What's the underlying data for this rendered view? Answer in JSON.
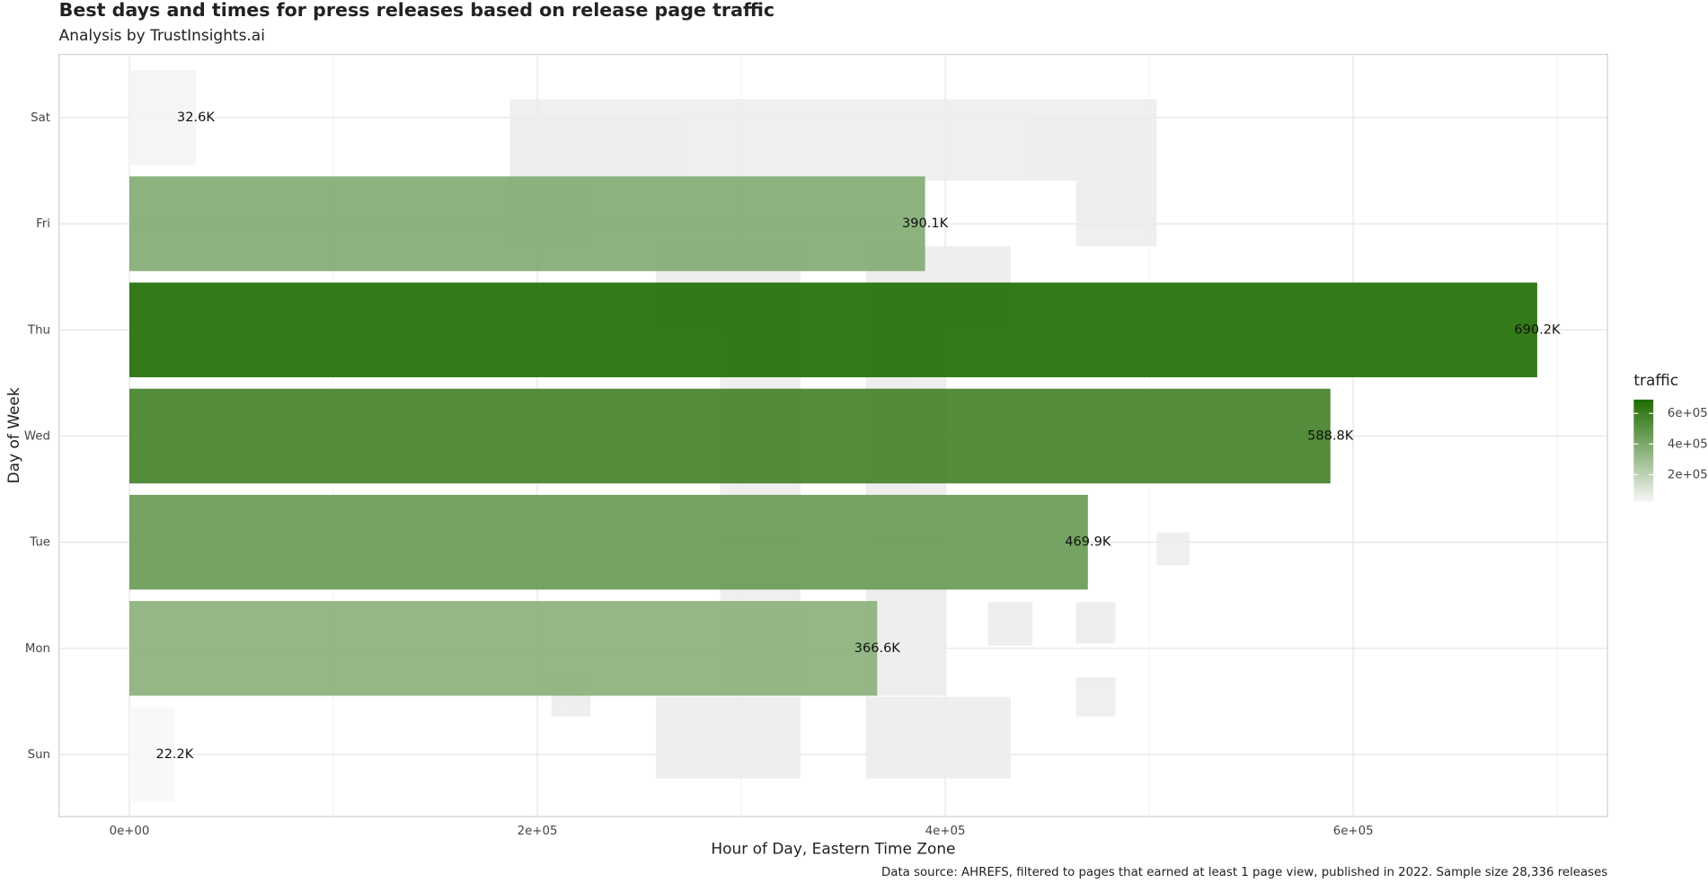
{
  "chart_data": {
    "type": "bar",
    "orientation": "horizontal",
    "title": "Best days and times for press releases based on release page traffic",
    "subtitle": "Analysis by TrustInsights.ai",
    "x_label": "Hour of Day, Eastern Time Zone",
    "y_label": "Day of Week",
    "caption": "Data source: AHREFS, filtered to pages that earned at least 1 page view, published in 2022. Sample size 28,336 releases",
    "categories": [
      "Sun",
      "Mon",
      "Tue",
      "Wed",
      "Thu",
      "Fri",
      "Sat"
    ],
    "values": [
      22200,
      366600,
      469900,
      588800,
      690200,
      390100,
      32600
    ],
    "value_labels": [
      "22.2K",
      "366.6K",
      "469.9K",
      "588.8K",
      "690.2K",
      "390.1K",
      "32.6K"
    ],
    "xlim": [
      -34500,
      724700
    ],
    "xticks": [
      {
        "value": 0,
        "label": "0e+00"
      },
      {
        "value": 200000,
        "label": "2e+05"
      },
      {
        "value": 400000,
        "label": "4e+05"
      },
      {
        "value": 600000,
        "label": "6e+05"
      }
    ],
    "grid": true,
    "low_color": "#f7f7f7",
    "high_color": "#1f6b00",
    "legend": {
      "title": "traffic",
      "position": "right",
      "ticks": [
        {
          "value": 200000,
          "label": "2e+05"
        },
        {
          "value": 400000,
          "label": "4e+05"
        },
        {
          "value": 600000,
          "label": "6e+05"
        }
      ]
    }
  }
}
